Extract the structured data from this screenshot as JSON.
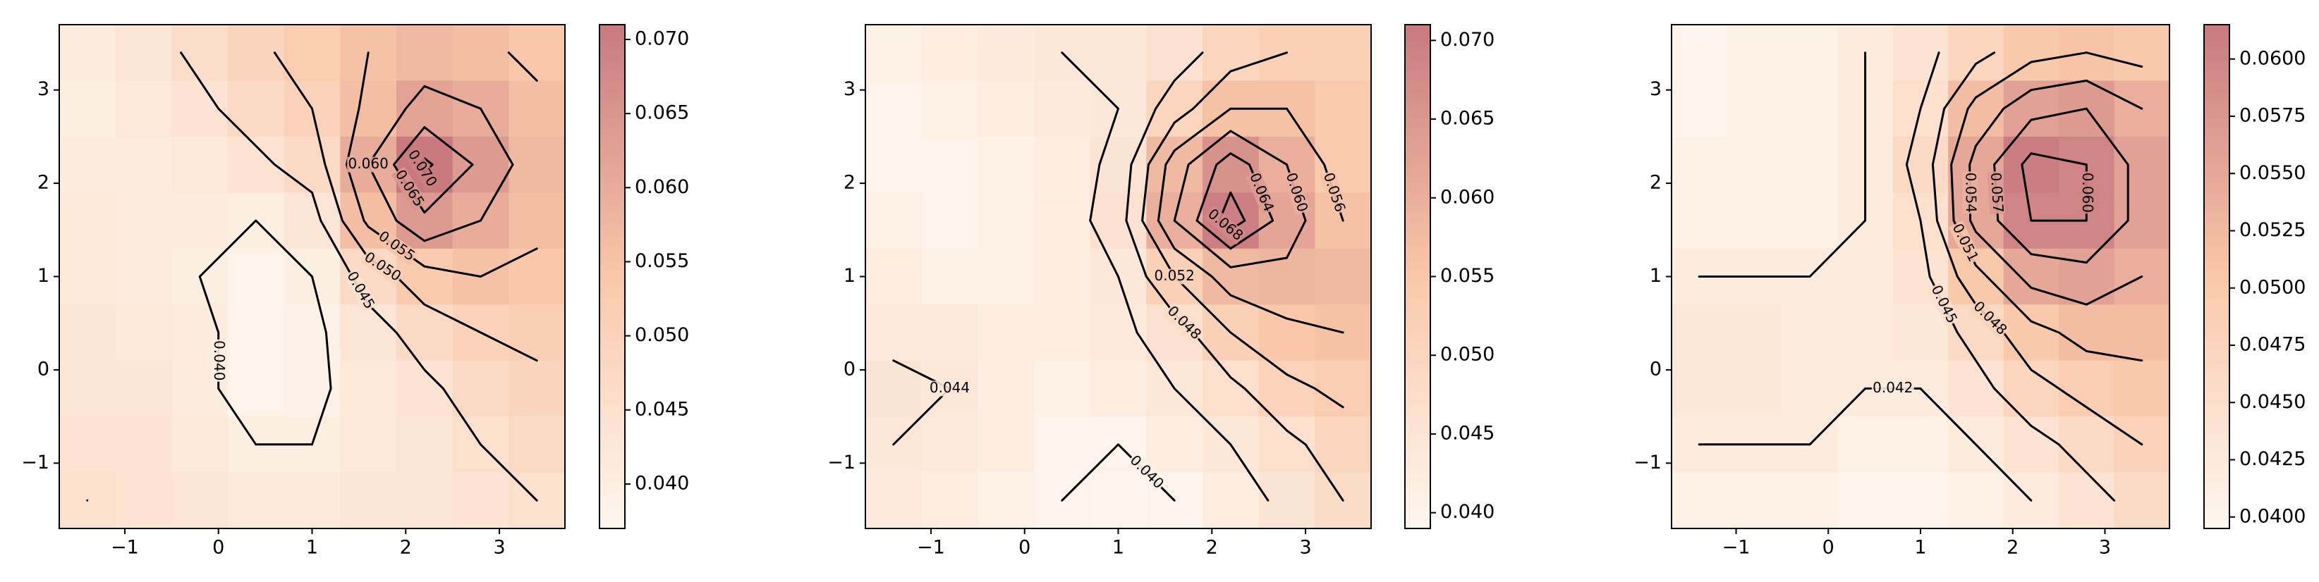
{
  "chart_data": [
    {
      "type": "heatmap",
      "colormap": [
        "#fef6ee",
        "#f9c7a9",
        "#c87a7f"
      ],
      "x": [
        -1.4,
        -0.8,
        -0.2,
        0.4,
        1.0,
        1.6,
        2.2,
        2.8,
        3.4
      ],
      "y": [
        3.4,
        2.8,
        2.2,
        1.6,
        1.0,
        0.4,
        -0.2,
        -0.8,
        -1.4
      ],
      "z": [
        [
          0.041,
          0.043,
          0.046,
          0.049,
          0.052,
          0.055,
          0.057,
          0.056,
          0.054
        ],
        [
          0.04,
          0.042,
          0.044,
          0.047,
          0.05,
          0.056,
          0.062,
          0.06,
          0.056
        ],
        [
          0.041,
          0.041,
          0.042,
          0.044,
          0.047,
          0.06,
          0.071,
          0.064,
          0.057
        ],
        [
          0.042,
          0.041,
          0.041,
          0.04,
          0.043,
          0.056,
          0.064,
          0.06,
          0.056
        ],
        [
          0.042,
          0.041,
          0.04,
          0.038,
          0.04,
          0.047,
          0.053,
          0.055,
          0.054
        ],
        [
          0.043,
          0.042,
          0.041,
          0.038,
          0.039,
          0.043,
          0.047,
          0.05,
          0.051
        ],
        [
          0.043,
          0.043,
          0.041,
          0.038,
          0.039,
          0.042,
          0.044,
          0.047,
          0.049
        ],
        [
          0.044,
          0.044,
          0.042,
          0.04,
          0.04,
          0.042,
          0.043,
          0.045,
          0.047
        ],
        [
          0.045,
          0.044,
          0.043,
          0.042,
          0.042,
          0.043,
          0.043,
          0.044,
          0.045
        ]
      ],
      "xlim": [
        -1.7,
        3.7
      ],
      "ylim": [
        -1.7,
        3.7
      ],
      "xticks": [
        {
          "value": -1,
          "label": "−1"
        },
        0,
        1,
        2,
        3
      ],
      "yticks": [
        {
          "value": -1,
          "label": "−1"
        },
        0,
        1,
        2,
        3
      ],
      "vlim": [
        0.037,
        0.071
      ],
      "cticks": [
        {
          "value": 0.04,
          "label": "0.040"
        },
        0.045,
        {
          "value": 0.05,
          "label": "0.050"
        },
        0.055,
        {
          "value": 0.06,
          "label": "0.060"
        },
        0.065,
        {
          "value": 0.07,
          "label": "0.070"
        }
      ],
      "contour_levels": [
        {
          "value": 0.04,
          "label": "0.040"
        },
        0.045,
        {
          "value": 0.05,
          "label": "0.050"
        },
        0.055,
        {
          "value": 0.06,
          "label": "0.060"
        },
        0.065,
        {
          "value": 0.07,
          "label": "0.070"
        }
      ]
    },
    {
      "type": "heatmap",
      "colormap": [
        "#fef6ee",
        "#f9c7a9",
        "#c87a7f"
      ],
      "x": [
        -1.4,
        -0.8,
        -0.2,
        0.4,
        1.0,
        1.6,
        2.2,
        2.8,
        3.4
      ],
      "y": [
        3.4,
        2.8,
        2.2,
        1.6,
        1.0,
        0.4,
        -0.2,
        -0.8,
        -1.4
      ],
      "z": [
        [
          0.041,
          0.042,
          0.043,
          0.044,
          0.044,
          0.046,
          0.05,
          0.052,
          0.052
        ],
        [
          0.04,
          0.041,
          0.042,
          0.043,
          0.044,
          0.05,
          0.056,
          0.056,
          0.054
        ],
        [
          0.04,
          0.04,
          0.041,
          0.042,
          0.045,
          0.058,
          0.066,
          0.06,
          0.054
        ],
        [
          0.041,
          0.04,
          0.041,
          0.042,
          0.046,
          0.06,
          0.07,
          0.062,
          0.056
        ],
        [
          0.042,
          0.041,
          0.041,
          0.042,
          0.044,
          0.052,
          0.058,
          0.059,
          0.058
        ],
        [
          0.043,
          0.043,
          0.042,
          0.042,
          0.043,
          0.046,
          0.052,
          0.055,
          0.056
        ],
        [
          0.045,
          0.044,
          0.042,
          0.041,
          0.042,
          0.044,
          0.047,
          0.051,
          0.053
        ],
        [
          0.044,
          0.043,
          0.042,
          0.04,
          0.04,
          0.042,
          0.044,
          0.047,
          0.05
        ],
        [
          0.043,
          0.042,
          0.041,
          0.04,
          0.039,
          0.04,
          0.042,
          0.045,
          0.048
        ]
      ],
      "xlim": [
        -1.7,
        3.7
      ],
      "ylim": [
        -1.7,
        3.7
      ],
      "xticks": [
        {
          "value": -1,
          "label": "−1"
        },
        0,
        1,
        2,
        3
      ],
      "yticks": [
        {
          "value": -1,
          "label": "−1"
        },
        0,
        1,
        2,
        3
      ],
      "vlim": [
        0.039,
        0.071
      ],
      "cticks": [
        {
          "value": 0.04,
          "label": "0.040"
        },
        0.045,
        {
          "value": 0.05,
          "label": "0.050"
        },
        0.055,
        {
          "value": 0.06,
          "label": "0.060"
        },
        0.065,
        {
          "value": 0.07,
          "label": "0.070"
        }
      ],
      "contour_levels": [
        {
          "value": 0.04,
          "label": "0.040"
        },
        0.044,
        0.048,
        0.052,
        0.056,
        {
          "value": 0.06,
          "label": "0.060"
        },
        0.064,
        0.068
      ]
    },
    {
      "type": "heatmap",
      "colormap": [
        "#fef6ee",
        "#f9c7a9",
        "#c87a7f"
      ],
      "x": [
        -1.4,
        -0.8,
        -0.2,
        0.4,
        1.0,
        1.6,
        2.2,
        2.8,
        3.4
      ],
      "y": [
        3.4,
        2.8,
        2.2,
        1.6,
        1.0,
        0.4,
        -0.2,
        -0.8,
        -1.4
      ],
      "z": [
        [
          0.04,
          0.041,
          0.041,
          0.042,
          0.044,
          0.047,
          0.05,
          0.051,
          0.05
        ],
        [
          0.04,
          0.041,
          0.041,
          0.042,
          0.045,
          0.052,
          0.056,
          0.057,
          0.054
        ],
        [
          0.041,
          0.041,
          0.041,
          0.042,
          0.046,
          0.055,
          0.061,
          0.06,
          0.056
        ],
        [
          0.041,
          0.041,
          0.041,
          0.042,
          0.045,
          0.055,
          0.06,
          0.06,
          0.056
        ],
        [
          0.042,
          0.042,
          0.042,
          0.042,
          0.044,
          0.05,
          0.055,
          0.056,
          0.054
        ],
        [
          0.043,
          0.043,
          0.042,
          0.042,
          0.043,
          0.046,
          0.05,
          0.052,
          0.052
        ],
        [
          0.043,
          0.043,
          0.042,
          0.042,
          0.042,
          0.044,
          0.047,
          0.049,
          0.05
        ],
        [
          0.042,
          0.042,
          0.042,
          0.041,
          0.041,
          0.042,
          0.044,
          0.046,
          0.048
        ],
        [
          0.041,
          0.041,
          0.041,
          0.04,
          0.04,
          0.041,
          0.042,
          0.044,
          0.046
        ]
      ],
      "xlim": [
        -1.7,
        3.7
      ],
      "ylim": [
        -1.7,
        3.7
      ],
      "xticks": [
        {
          "value": -1,
          "label": "−1"
        },
        0,
        1,
        2,
        3
      ],
      "yticks": [
        {
          "value": -1,
          "label": "−1"
        },
        0,
        1,
        2,
        3
      ],
      "vlim": [
        0.0395,
        0.0615
      ],
      "cticks": [
        {
          "value": 0.04,
          "label": "0.0400"
        },
        0.0425,
        {
          "value": 0.045,
          "label": "0.0450"
        },
        0.0475,
        {
          "value": 0.05,
          "label": "0.0500"
        },
        0.0525,
        {
          "value": 0.055,
          "label": "0.0550"
        },
        0.0575,
        {
          "value": 0.06,
          "label": "0.0600"
        }
      ],
      "contour_levels": [
        0.042,
        0.045,
        0.048,
        0.051,
        0.054,
        0.057,
        {
          "value": 0.06,
          "label": "0.060"
        }
      ]
    }
  ]
}
